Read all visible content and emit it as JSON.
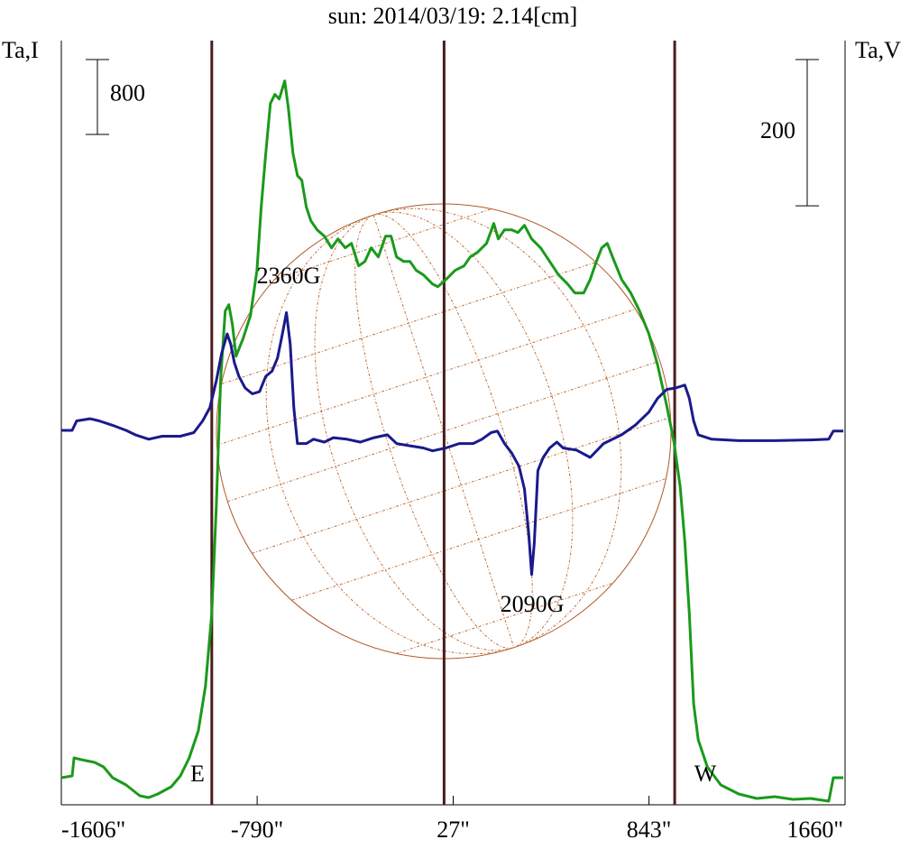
{
  "chart_data": {
    "type": "line",
    "title": "sun: 2014/03/19: 2.14[cm]",
    "title_color": "#1a1a6e",
    "y_label": "Ta,I",
    "y2_label": "Ta,V",
    "xlim": [
      -1606,
      1660
    ],
    "xticks": [
      {
        "value": -1606,
        "label": "-1606\""
      },
      {
        "value": -790,
        "label": "-790\""
      },
      {
        "value": 27,
        "label": "27\""
      },
      {
        "value": 843,
        "label": "843\""
      },
      {
        "value": 1660,
        "label": "1660\""
      }
    ],
    "ylim": [
      0,
      8200
    ],
    "y2lim": [
      -500,
      550
    ],
    "scale_bars": [
      {
        "value": 800,
        "axis": "y"
      },
      {
        "value": 200,
        "axis": "y2"
      }
    ],
    "vlines": [
      -979,
      -11,
      950
    ],
    "vline_color": "#4a1c1c",
    "annotations": [
      "2360G",
      "2090G",
      "E",
      "W"
    ],
    "series": [
      {
        "color": "#1a9a1a",
        "axis": "y",
        "x": [
          -1606,
          -1561,
          -1553,
          -1523,
          -1467,
          -1430,
          -1392,
          -1336,
          -1279,
          -1242,
          -1204,
          -1148,
          -1110,
          -1073,
          -1035,
          -1005,
          -979,
          -960,
          -942,
          -923,
          -908,
          -893,
          -878,
          -848,
          -818,
          -791,
          -773,
          -754,
          -735,
          -716,
          -698,
          -675,
          -660,
          -641,
          -622,
          -604,
          -585,
          -566,
          -540,
          -510,
          -480,
          -453,
          -423,
          -397,
          -367,
          -341,
          -315,
          -285,
          -255,
          -232,
          -209,
          -179,
          -153,
          -127,
          -97,
          -59,
          -37,
          -3,
          35,
          72,
          98,
          128,
          166,
          196,
          215,
          241,
          271,
          297,
          324,
          354,
          391,
          429,
          466,
          504,
          534,
          571,
          598,
          624,
          646,
          669,
          691,
          729,
          767,
          804,
          842,
          879,
          917,
          947,
          973,
          992,
          1011,
          1029,
          1048,
          1086,
          1142,
          1217,
          1292,
          1367,
          1442,
          1517,
          1592,
          1611,
          1653
        ],
        "values": [
          289,
          308,
          501,
          482,
          453,
          405,
          289,
          212,
          96,
          77,
          116,
          193,
          308,
          501,
          790,
          1272,
          2044,
          3200,
          4550,
          5273,
          5341,
          5128,
          4791,
          4984,
          5225,
          5707,
          6382,
          6960,
          7490,
          7587,
          7538,
          7731,
          7442,
          6960,
          6719,
          6671,
          6382,
          6237,
          6141,
          6073,
          5948,
          6044,
          5948,
          5996,
          5755,
          5803,
          5948,
          5851,
          6073,
          6073,
          5851,
          5803,
          5803,
          5707,
          5659,
          5562,
          5533,
          5610,
          5707,
          5755,
          5851,
          5900,
          5996,
          6208,
          6044,
          6141,
          6141,
          6112,
          6189,
          6044,
          5948,
          5803,
          5659,
          5562,
          5466,
          5466,
          5610,
          5803,
          5948,
          5996,
          5851,
          5610,
          5466,
          5273,
          5032,
          4695,
          4261,
          3875,
          3393,
          2815,
          2044,
          1080,
          694,
          405,
          212,
          116,
          67,
          87,
          58,
          67,
          39,
          289,
          289
        ]
      },
      {
        "color": "#1a1a8c",
        "axis": "y2",
        "x": [
          -1606,
          -1561,
          -1542,
          -1486,
          -1448,
          -1392,
          -1336,
          -1298,
          -1242,
          -1186,
          -1110,
          -1054,
          -1017,
          -987,
          -960,
          -938,
          -915,
          -900,
          -885,
          -866,
          -840,
          -810,
          -780,
          -754,
          -728,
          -705,
          -686,
          -668,
          -652,
          -637,
          -622,
          -585,
          -555,
          -510,
          -472,
          -416,
          -360,
          -303,
          -247,
          -209,
          -153,
          -97,
          -59,
          -3,
          53,
          110,
          147,
          185,
          211,
          241,
          271,
          301,
          324,
          342,
          354,
          365,
          380,
          402,
          429,
          459,
          485,
          541,
          598,
          654,
          729,
          785,
          842,
          879,
          917,
          954,
          992,
          1011,
          1029,
          1048,
          1104,
          1217,
          1367,
          1517,
          1592,
          1611,
          1653
        ],
        "values": [
          12,
          12,
          25,
          28,
          25,
          19,
          12,
          6,
          0,
          4,
          4,
          9,
          25,
          43,
          80,
          117,
          144,
          130,
          105,
          86,
          70,
          62,
          65,
          86,
          93,
          111,
          142,
          173,
          130,
          43,
          -6,
          -6,
          0,
          -4,
          2,
          0,
          -4,
          2,
          6,
          -6,
          -9,
          -12,
          -16,
          -12,
          -6,
          -6,
          0,
          9,
          11,
          -6,
          -19,
          -37,
          -68,
          -130,
          -185,
          -142,
          -43,
          -25,
          -12,
          -4,
          -12,
          -15,
          -25,
          -6,
          6,
          19,
          37,
          56,
          68,
          70,
          74,
          56,
          25,
          6,
          0,
          -2,
          -2,
          -1,
          0,
          11,
          11
        ]
      }
    ]
  }
}
